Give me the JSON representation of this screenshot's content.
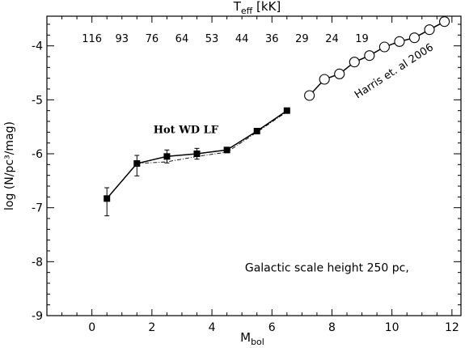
{
  "chart_data": {
    "type": "line",
    "xlabel": {
      "main": "M",
      "sub": "bol"
    },
    "ylabel": "log (N/pc³/mag)",
    "top_axis_label": {
      "main": "T",
      "sub": "eff",
      "unit": "[kK]"
    },
    "xlim": [
      -1.5,
      12.3
    ],
    "ylim": [
      -9,
      -3.45
    ],
    "x_ticks": [
      "0",
      "2",
      "4",
      "6",
      "8",
      "10",
      "12"
    ],
    "x_tick_values": [
      0,
      2,
      4,
      6,
      8,
      10,
      12
    ],
    "y_ticks": [
      "-9",
      "-8",
      "-7",
      "-6",
      "-5",
      "-4"
    ],
    "y_tick_values": [
      -9,
      -8,
      -7,
      -6,
      -5,
      -4
    ],
    "teff_labels": [
      "116",
      "93",
      "76",
      "64",
      "53",
      "44",
      "36",
      "29",
      "24",
      "19"
    ],
    "teff_positions": [
      0,
      1,
      2,
      3,
      4,
      5,
      6,
      7,
      8,
      9
    ],
    "series": [
      {
        "marker": "filled-square",
        "style": "solid",
        "x": [
          0.5,
          1.5,
          2.5,
          3.5,
          4.5,
          5.5,
          6.5
        ],
        "y": [
          -6.83,
          -6.18,
          -6.05,
          -6.0,
          -5.93,
          -5.58,
          -5.2
        ],
        "err_up": [
          0.2,
          0.15,
          0.12,
          0.1,
          0.05,
          0.0,
          0.0
        ],
        "err_down": [
          0.32,
          0.23,
          0.12,
          0.1,
          0.05,
          0.0,
          0.0
        ]
      },
      {
        "marker": "none",
        "style": "dashdot",
        "x": [
          1.5,
          2.5,
          3.5,
          4.5,
          5.5,
          6.5
        ],
        "y": [
          -6.18,
          -6.15,
          -6.05,
          -5.97,
          -5.6,
          -5.22
        ]
      },
      {
        "marker": "open-circle",
        "style": "solid",
        "x": [
          7.25,
          7.75,
          8.25,
          8.75,
          9.25,
          9.75,
          10.25,
          10.75,
          11.25,
          11.75
        ],
        "y": [
          -4.92,
          -4.62,
          -4.52,
          -4.3,
          -4.18,
          -4.02,
          -3.92,
          -3.85,
          -3.7,
          -3.55
        ]
      }
    ],
    "annotations": [
      {
        "text": "Hot WD LF",
        "x": 2.05,
        "y": -5.62,
        "style": "serif-bold",
        "rotate": 0
      },
      {
        "text": "Harris et. al 2006",
        "x": 8.85,
        "y": -4.98,
        "style": "sans",
        "rotate": -33
      },
      {
        "text": "Galactic scale height  250 pc,",
        "x": 5.1,
        "y": -8.18,
        "style": "sans",
        "rotate": 0
      }
    ],
    "grid": false
  }
}
